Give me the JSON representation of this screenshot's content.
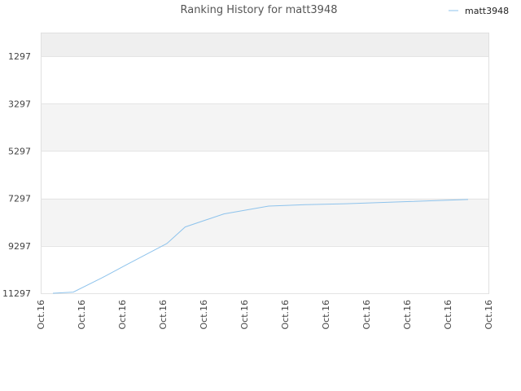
{
  "chart_data": {
    "type": "line",
    "title": "Ranking History for matt3948",
    "xlabel": "",
    "ylabel": "",
    "legend": "top-right",
    "y_inverted": true,
    "ylim": [
      11297,
      297
    ],
    "yticks": [
      1297,
      3297,
      5297,
      7297,
      9297,
      11297
    ],
    "x_tick_labels": [
      "Oct.16",
      "Oct.16",
      "Oct.16",
      "Oct.16",
      "Oct.16",
      "Oct.16",
      "Oct.16",
      "Oct.16",
      "Oct.16",
      "Oct.16",
      "Oct.16",
      "Oct.16"
    ],
    "bands": [
      {
        "from": 297,
        "to": 1297,
        "color": "#efefef"
      },
      {
        "from": 3297,
        "to": 5297,
        "color": "#f4f4f4"
      },
      {
        "from": 7297,
        "to": 9297,
        "color": "#f4f4f4"
      }
    ],
    "series": [
      {
        "name": "matt3948",
        "color": "#8ec3ec",
        "x": [
          0.3,
          0.8,
          1.5,
          2.1,
          2.6,
          3.1,
          3.55,
          4.5,
          5.6,
          6.0,
          6.5,
          7.5,
          8.0,
          9.0,
          10.0,
          10.5
        ],
        "values": [
          11297,
          11250,
          10650,
          10100,
          9650,
          9200,
          8500,
          7950,
          7620,
          7590,
          7560,
          7520,
          7490,
          7430,
          7370,
          7340
        ]
      }
    ]
  }
}
